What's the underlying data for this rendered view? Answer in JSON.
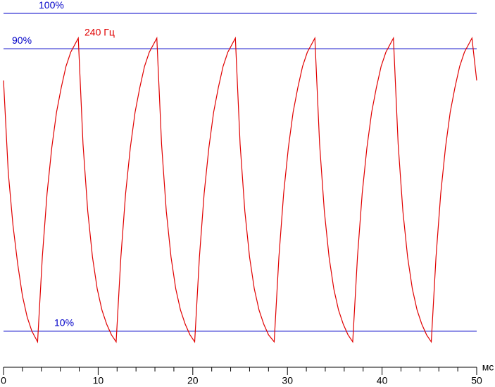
{
  "chart_data": {
    "type": "line",
    "x_label": "мс",
    "xlim": [
      0,
      50
    ],
    "xticks": [
      0,
      10,
      20,
      30,
      40,
      50
    ],
    "ylim": [
      0,
      104
    ],
    "yticks": [
      {
        "value": 100,
        "label": "100%"
      },
      {
        "value": 90,
        "label": "90%"
      },
      {
        "value": 10,
        "label": "10%"
      }
    ],
    "reference_color": "#0000c8",
    "series": [
      {
        "name": "240 Гц",
        "color": "#e00000",
        "x": [
          0,
          0.5,
          1,
          1.5,
          2,
          2.5,
          3,
          3.6,
          4.1,
          4.6,
          5.1,
          5.6,
          6.1,
          6.6,
          7.1,
          7.9,
          8.4,
          8.9,
          9.4,
          9.9,
          10.4,
          10.9,
          11.4,
          11.9,
          12.4,
          12.9,
          13.4,
          13.9,
          14.4,
          14.9,
          15.4,
          16.2,
          16.7,
          17.2,
          17.7,
          18.2,
          18.7,
          19.2,
          19.7,
          20.2,
          20.7,
          21.2,
          21.7,
          22.2,
          22.7,
          23.2,
          23.7,
          24.5,
          25,
          25.5,
          26,
          26.5,
          27,
          27.5,
          28,
          28.6,
          29.1,
          29.6,
          30.1,
          30.6,
          31.1,
          31.6,
          32.1,
          32.9,
          33.4,
          33.9,
          34.4,
          34.9,
          35.4,
          35.9,
          36.4,
          36.9,
          37.4,
          37.9,
          38.4,
          38.9,
          39.4,
          39.9,
          40.4,
          41.2,
          41.7,
          42.2,
          42.7,
          43.2,
          43.7,
          44.2,
          44.7,
          45.2,
          45.7,
          46.2,
          46.7,
          47.2,
          47.7,
          48.2,
          48.7,
          49.5,
          50
        ],
        "values": [
          81,
          55,
          40,
          29,
          20,
          14,
          10,
          7,
          31,
          49,
          62,
          72,
          79,
          85,
          89,
          93,
          63,
          44,
          31,
          22,
          16,
          12,
          9,
          7,
          31,
          49,
          62,
          72,
          79,
          85,
          89,
          93,
          63,
          44,
          31,
          22,
          16,
          12,
          9,
          7,
          31,
          49,
          62,
          72,
          79,
          85,
          89,
          93,
          63,
          44,
          31,
          22,
          16,
          12,
          9,
          7,
          31,
          49,
          62,
          72,
          79,
          85,
          89,
          93,
          63,
          44,
          31,
          22,
          16,
          12,
          9,
          7,
          31,
          49,
          62,
          72,
          79,
          85,
          89,
          93,
          63,
          44,
          31,
          22,
          16,
          12,
          9,
          7,
          31,
          49,
          62,
          72,
          79,
          85,
          89,
          93,
          81
        ]
      }
    ]
  }
}
